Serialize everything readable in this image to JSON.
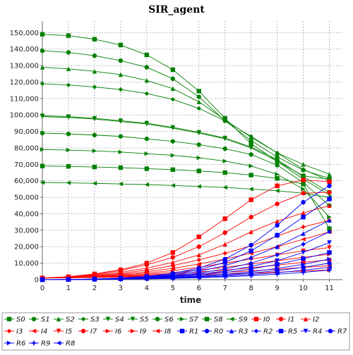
{
  "chart_data": {
    "type": "line",
    "title": "SIR_agent",
    "xlabel": "time",
    "ylabel": "",
    "x": [
      0,
      1,
      2,
      3,
      4,
      5,
      6,
      7,
      8,
      9,
      10,
      11
    ],
    "xlim": [
      0,
      11.5
    ],
    "ylim": [
      0,
      157000
    ],
    "yticks": [
      0,
      10000,
      20000,
      30000,
      40000,
      50000,
      60000,
      70000,
      80000,
      90000,
      100000,
      110000,
      120000,
      130000,
      140000,
      150000
    ],
    "ytick_labels": [
      "0",
      "10,000",
      "20,000",
      "30,000",
      "40,000",
      "50,000",
      "60,000",
      "70,000",
      "80,000",
      "90,000",
      "100,000",
      "110,000",
      "120,000",
      "130,000",
      "140,000",
      "150,000"
    ],
    "xtick_labels": [
      "0",
      "1",
      "2",
      "3",
      "4",
      "5",
      "6",
      "7",
      "8",
      "9",
      "10",
      "11"
    ],
    "grid": true,
    "legend_position": "bottom",
    "series": [
      {
        "name": "S0",
        "color": "#008000",
        "marker": "square",
        "values": [
          149000,
          148200,
          146000,
          142500,
          136500,
          127500,
          114500,
          98000,
          82500,
          72000,
          63000,
          61000
        ]
      },
      {
        "name": "S1",
        "color": "#008000",
        "marker": "circle",
        "values": [
          139000,
          138000,
          136000,
          133000,
          129000,
          122000,
          111000,
          96500,
          84500,
          74500,
          66500,
          61500
        ]
      },
      {
        "name": "S2",
        "color": "#008000",
        "marker": "triangle-up",
        "values": [
          129000,
          128000,
          126500,
          124500,
          121000,
          116000,
          108000,
          97000,
          86500,
          77000,
          70000,
          64000
        ]
      },
      {
        "name": "S3",
        "color": "#008000",
        "marker": "diamond",
        "values": [
          119000,
          118200,
          117000,
          115500,
          113000,
          109500,
          104000,
          96500,
          87000,
          77000,
          67000,
          60000
        ]
      },
      {
        "name": "S4",
        "color": "#008000",
        "marker": "triangle-down",
        "values": [
          99500,
          99000,
          98000,
          96500,
          95000,
          92500,
          89500,
          86000,
          80500,
          73000,
          62500,
          53000
        ]
      },
      {
        "name": "S5",
        "color": "#008000",
        "marker": "triangle-down",
        "values": [
          99000,
          98500,
          97500,
          96000,
          94500,
          92000,
          89000,
          85500,
          80000,
          72000,
          61000,
          51500
        ]
      },
      {
        "name": "S6",
        "color": "#008000",
        "marker": "circle",
        "values": [
          89000,
          88500,
          87800,
          87000,
          85500,
          84000,
          82000,
          79500,
          76000,
          69500,
          59000,
          45000
        ]
      },
      {
        "name": "S7",
        "color": "#008000",
        "marker": "triangle-right",
        "values": [
          79000,
          78700,
          78200,
          77500,
          76500,
          75500,
          74000,
          72000,
          69000,
          64000,
          55000,
          38000
        ]
      },
      {
        "name": "S8",
        "color": "#008000",
        "marker": "square",
        "values": [
          69000,
          68800,
          68400,
          68000,
          67400,
          66800,
          66000,
          65000,
          63500,
          61500,
          58000,
          31000
        ]
      },
      {
        "name": "S9",
        "color": "#008000",
        "marker": "triangle-left",
        "values": [
          59000,
          58800,
          58500,
          58100,
          57700,
          57200,
          56600,
          56000,
          55000,
          54000,
          52500,
          50000
        ]
      },
      {
        "name": "I0",
        "color": "#ff0000",
        "marker": "square",
        "values": [
          1000,
          1800,
          3500,
          6000,
          10000,
          16500,
          26000,
          37000,
          48500,
          57000,
          60500,
          59500
        ]
      },
      {
        "name": "I1",
        "color": "#ff0000",
        "marker": "circle",
        "values": [
          1000,
          1700,
          3200,
          5500,
          9000,
          13500,
          20000,
          28500,
          38000,
          46000,
          52500,
          53000
        ]
      },
      {
        "name": "I2",
        "color": "#ff0000",
        "marker": "triangle-up",
        "values": [
          1000,
          1600,
          2800,
          4500,
          7000,
          10500,
          15000,
          21500,
          29000,
          35500,
          40500,
          45000
        ]
      },
      {
        "name": "I3",
        "color": "#ff0000",
        "marker": "diamond",
        "values": [
          1000,
          1500,
          2400,
          3800,
          5800,
          8500,
          12000,
          16000,
          20500,
          26500,
          32000,
          36000
        ]
      },
      {
        "name": "I4",
        "color": "#ff0000",
        "marker": "triangle-left",
        "values": [
          1000,
          1400,
          2100,
          3200,
          4800,
          6800,
          9500,
          12500,
          16000,
          20000,
          24500,
          29000
        ]
      },
      {
        "name": "I5",
        "color": "#ff0000",
        "marker": "triangle-down",
        "values": [
          1000,
          1300,
          1900,
          2800,
          4000,
          5500,
          7500,
          10000,
          12500,
          15000,
          17500,
          19500
        ]
      },
      {
        "name": "I6",
        "color": "#ff0000",
        "marker": "triangle-right",
        "values": [
          1000,
          1200,
          1700,
          2400,
          3300,
          4400,
          5800,
          7500,
          9500,
          11500,
          13500,
          15500
        ]
      },
      {
        "name": "I7",
        "color": "#ff0000",
        "marker": "circle",
        "values": [
          1000,
          1200,
          1600,
          2100,
          2800,
          3600,
          4600,
          5800,
          7200,
          8800,
          10500,
          12000
        ]
      },
      {
        "name": "I8",
        "color": "#ff0000",
        "marker": "triangle-left",
        "values": [
          1000,
          1100,
          1400,
          1800,
          2300,
          2900,
          3600,
          4400,
          5300,
          6300,
          7400,
          8500
        ]
      },
      {
        "name": "I9",
        "color": "#ff0000",
        "marker": "triangle-right",
        "values": [
          1000,
          1100,
          1300,
          1600,
          1900,
          2300,
          2800,
          3300,
          3900,
          4500,
          5200,
          5900
        ]
      },
      {
        "name": "R1",
        "color": "#0000ff",
        "marker": "square",
        "values": [
          0,
          100,
          400,
          900,
          1800,
          3300,
          6000,
          10500,
          17500,
          27000,
          38000,
          49000
        ]
      },
      {
        "name": "R0",
        "color": "#0000ff",
        "marker": "circle",
        "values": [
          0,
          100,
          400,
          1000,
          2000,
          3800,
          7000,
          12500,
          21000,
          33000,
          47000,
          57000
        ]
      },
      {
        "name": "R3",
        "color": "#0000ff",
        "marker": "triangle-up",
        "values": [
          0,
          100,
          350,
          800,
          1600,
          2800,
          5000,
          8500,
          13500,
          20000,
          28000,
          36000
        ]
      },
      {
        "name": "R2",
        "color": "#0000ff",
        "marker": "diamond",
        "values": [
          0,
          100,
          300,
          700,
          1300,
          2300,
          4000,
          6500,
          10000,
          15000,
          21500,
          29000
        ]
      },
      {
        "name": "R5",
        "color": "#0000ff",
        "marker": "square",
        "values": [
          0,
          80,
          250,
          550,
          1000,
          1700,
          2800,
          4300,
          6500,
          9300,
          12700,
          16500
        ]
      },
      {
        "name": "R4",
        "color": "#0000ff",
        "marker": "triangle-down",
        "values": [
          0,
          90,
          280,
          620,
          1150,
          2000,
          3300,
          5200,
          8000,
          11500,
          16500,
          22500
        ]
      },
      {
        "name": "R7",
        "color": "#0000ff",
        "marker": "circle",
        "values": [
          0,
          60,
          180,
          380,
          700,
          1150,
          1800,
          2700,
          3900,
          5500,
          7500,
          10000
        ]
      },
      {
        "name": "R6",
        "color": "#0000ff",
        "marker": "triangle-right",
        "values": [
          0,
          70,
          220,
          470,
          850,
          1400,
          2200,
          3300,
          4800,
          6800,
          9300,
          12500
        ]
      },
      {
        "name": "R9",
        "color": "#0000ff",
        "marker": "plus",
        "values": [
          0,
          40,
          120,
          250,
          450,
          750,
          1150,
          1700,
          2400,
          3300,
          4400,
          5800
        ]
      },
      {
        "name": "R8",
        "color": "#0000ff",
        "marker": "triangle-left",
        "values": [
          0,
          50,
          150,
          320,
          580,
          950,
          1450,
          2150,
          3050,
          4200,
          5700,
          7500
        ]
      }
    ]
  }
}
